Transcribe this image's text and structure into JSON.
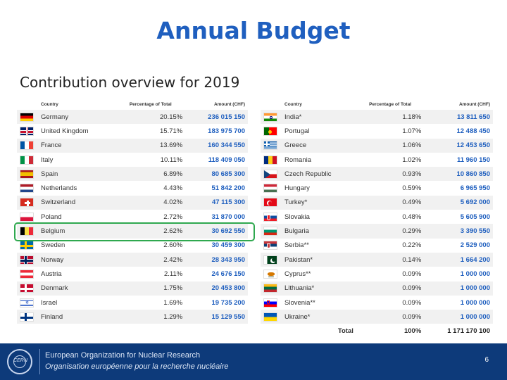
{
  "title": "Annual Budget",
  "subtitle": "Contribution overview for 2019",
  "headers": {
    "country": "Country",
    "percent": "Percentage of Total",
    "amount": "Amount (CHF)"
  },
  "left_rows": [
    {
      "country": "Germany",
      "pct": "20.15%",
      "amt": "236 015 150",
      "flag": "de"
    },
    {
      "country": "United Kingdom",
      "pct": "15.71%",
      "amt": "183 975 700",
      "flag": "gb"
    },
    {
      "country": "France",
      "pct": "13.69%",
      "amt": "160 344 550",
      "flag": "fr"
    },
    {
      "country": "Italy",
      "pct": "10.11%",
      "amt": "118 409 050",
      "flag": "it"
    },
    {
      "country": "Spain",
      "pct": "6.89%",
      "amt": "80 685 300",
      "flag": "es"
    },
    {
      "country": "Netherlands",
      "pct": "4.43%",
      "amt": "51 842 200",
      "flag": "nl"
    },
    {
      "country": "Switzerland",
      "pct": "4.02%",
      "amt": "47 115 300",
      "flag": "ch"
    },
    {
      "country": "Poland",
      "pct": "2.72%",
      "amt": "31 870 000",
      "flag": "pl"
    },
    {
      "country": "Belgium",
      "pct": "2.62%",
      "amt": "30 692 550",
      "flag": "be"
    },
    {
      "country": "Sweden",
      "pct": "2.60%",
      "amt": "30 459 300",
      "flag": "se"
    },
    {
      "country": "Norway",
      "pct": "2.42%",
      "amt": "28 343 950",
      "flag": "no"
    },
    {
      "country": "Austria",
      "pct": "2.11%",
      "amt": "24 676 150",
      "flag": "at"
    },
    {
      "country": "Denmark",
      "pct": "1.75%",
      "amt": "20 453 800",
      "flag": "dk"
    },
    {
      "country": "Israel",
      "pct": "1.69%",
      "amt": "19 735 200",
      "flag": "il"
    },
    {
      "country": "Finland",
      "pct": "1.29%",
      "amt": "15 129 550",
      "flag": "fi"
    }
  ],
  "right_rows": [
    {
      "country": "India*",
      "pct": "1.18%",
      "amt": "13 811 650",
      "flag": "in"
    },
    {
      "country": "Portugal",
      "pct": "1.07%",
      "amt": "12 488 450",
      "flag": "pt"
    },
    {
      "country": "Greece",
      "pct": "1.06%",
      "amt": "12 453 650",
      "flag": "gr"
    },
    {
      "country": "Romania",
      "pct": "1.02%",
      "amt": "11 960 150",
      "flag": "ro"
    },
    {
      "country": "Czech Republic",
      "pct": "0.93%",
      "amt": "10 860 850",
      "flag": "cz"
    },
    {
      "country": "Hungary",
      "pct": "0.59%",
      "amt": "6 965 950",
      "flag": "hu"
    },
    {
      "country": "Turkey*",
      "pct": "0.49%",
      "amt": "5 692 000",
      "flag": "tr"
    },
    {
      "country": "Slovakia",
      "pct": "0.48%",
      "amt": "5 605 900",
      "flag": "sk"
    },
    {
      "country": "Bulgaria",
      "pct": "0.29%",
      "amt": "3 390 550",
      "flag": "bg"
    },
    {
      "country": "Serbia**",
      "pct": "0.22%",
      "amt": "2 529 000",
      "flag": "rs"
    },
    {
      "country": "Pakistan*",
      "pct": "0.14%",
      "amt": "1 664 200",
      "flag": "pk"
    },
    {
      "country": "Cyprus**",
      "pct": "0.09%",
      "amt": "1 000 000",
      "flag": "cy"
    },
    {
      "country": "Lithuania*",
      "pct": "0.09%",
      "amt": "1 000 000",
      "flag": "lt"
    },
    {
      "country": "Slovenia**",
      "pct": "0.09%",
      "amt": "1 000 000",
      "flag": "si"
    },
    {
      "country": "Ukraine*",
      "pct": "0.09%",
      "amt": "1 000 000",
      "flag": "ua"
    }
  ],
  "total": {
    "label": "Total",
    "pct": "100%",
    "amt": "1 171 170 100"
  },
  "footer": {
    "logo_text": "CERN",
    "org_en": "European Organization for Nuclear Research",
    "org_fr": "Organisation européenne pour la recherche nucléaire",
    "page": "6"
  },
  "colors": {
    "title": "#1f5fbf",
    "highlight": "#2fa84f",
    "footer": "#0d3a7a"
  }
}
